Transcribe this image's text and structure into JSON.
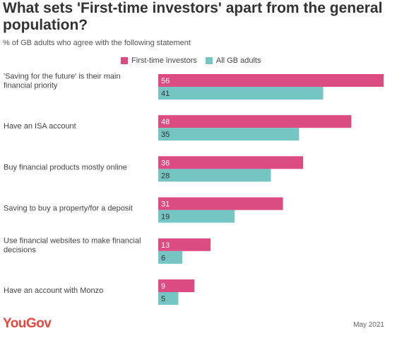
{
  "title": "What sets 'First-time investors' apart from the general population?",
  "subtitle": "% of GB adults who agree with the following statement",
  "footer": {
    "brand": "YouGov",
    "date": "May 2021"
  },
  "colors": {
    "first_time": "#dc4c82",
    "all_gb": "#74c5c3"
  },
  "chart_data": {
    "type": "bar",
    "orientation": "horizontal",
    "categories": [
      "'Saving for the future' is their main financial priority",
      "Have an ISA account",
      "Buy financial products mostly online",
      "Saving to buy a property/for a deposit",
      "Use financial websites to make financial decisions",
      "Have an account with Monzo"
    ],
    "series": [
      {
        "name": "First-time investors",
        "values": [
          56,
          48,
          36,
          31,
          13,
          9
        ]
      },
      {
        "name": "All GB adults",
        "values": [
          41,
          35,
          28,
          19,
          6,
          5
        ]
      }
    ],
    "xlim": [
      0,
      56
    ],
    "grid": false,
    "legend": "top"
  }
}
